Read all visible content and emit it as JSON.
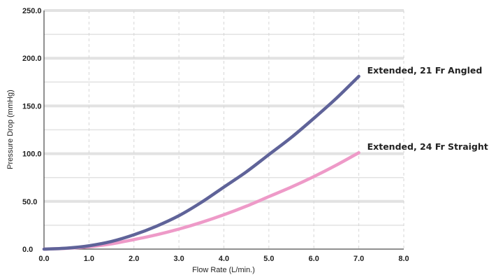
{
  "chart_data": {
    "type": "line",
    "title": "",
    "xlabel": "Flow Rate (L/min.)",
    "ylabel": "Pressure Drop (mmHg)",
    "xlim": [
      0,
      8
    ],
    "ylim": [
      0,
      250
    ],
    "x_ticks": [
      "0.0",
      "1.0",
      "2.0",
      "3.0",
      "4.0",
      "5.0",
      "6.0",
      "7.0",
      "8.0"
    ],
    "y_ticks": [
      "0.0",
      "50.0",
      "100.0",
      "150.0",
      "200.0",
      "250.0"
    ],
    "grid": {
      "horizontal": true,
      "vertical_dashed": true
    },
    "legend": "inline labels at line ends",
    "series": [
      {
        "name": "Extended, 21 Fr Angled",
        "color": "#5f6399",
        "x": [
          0,
          0.5,
          1,
          1.5,
          2,
          2.5,
          3,
          3.5,
          4,
          4.5,
          5,
          5.5,
          6,
          6.5,
          7
        ],
        "y": [
          0,
          1,
          3.5,
          8,
          15,
          24,
          35,
          49,
          65,
          81,
          99,
          117,
          137,
          158,
          181
        ]
      },
      {
        "name": "Extended, 24 Fr Straight",
        "color": "#ee9ac8",
        "x": [
          0,
          0.5,
          1,
          1.5,
          2,
          2.5,
          3,
          3.5,
          4,
          4.5,
          5,
          5.5,
          6,
          6.5,
          7
        ],
        "y": [
          0,
          0.8,
          2.5,
          5.5,
          10,
          15,
          21,
          28,
          36,
          45,
          55,
          65,
          76,
          88,
          101
        ]
      }
    ]
  }
}
